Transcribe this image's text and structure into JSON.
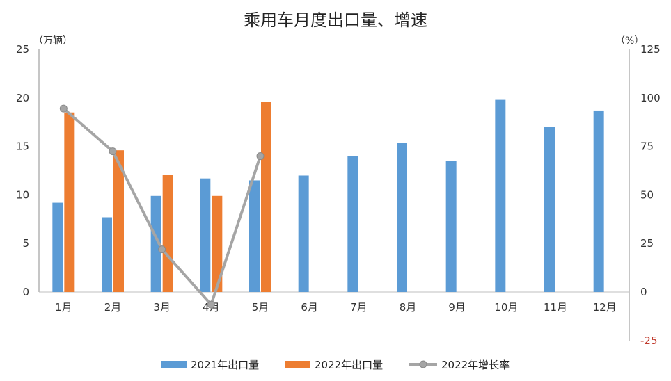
{
  "chart_data": {
    "type": "bar",
    "title": "乘用车月度出口量、增速",
    "categories": [
      "1月",
      "2月",
      "3月",
      "4月",
      "5月",
      "6月",
      "7月",
      "8月",
      "9月",
      "10月",
      "11月",
      "12月"
    ],
    "y_left": {
      "unit": "（万辆）",
      "ylim": [
        0,
        25
      ],
      "ticks": [
        "0",
        "5",
        "10",
        "15",
        "20",
        "25"
      ]
    },
    "y_right": {
      "unit": "（%）",
      "ylim": [
        -25,
        125
      ],
      "ticks": [
        "-25",
        "0",
        "25",
        "50",
        "75",
        "100",
        "125"
      ],
      "negative_color": "#c0392b"
    },
    "series": [
      {
        "name": "2021年出口量",
        "kind": "bar",
        "color": "#5b9bd5",
        "values": [
          9.2,
          7.7,
          9.9,
          11.7,
          11.5,
          12.0,
          14.0,
          15.4,
          13.5,
          19.8,
          17.0,
          18.7
        ]
      },
      {
        "name": "2022年出口量",
        "kind": "bar",
        "color": "#ed7d31",
        "values": [
          18.5,
          14.6,
          12.1,
          9.9,
          19.6,
          null,
          null,
          null,
          null,
          null,
          null,
          null
        ]
      },
      {
        "name": "2022年增长率",
        "kind": "line",
        "axis": "right",
        "color": "#a5a5a5",
        "values": [
          94.5,
          72.5,
          22,
          -6.5,
          70,
          null,
          null,
          null,
          null,
          null,
          null,
          null
        ]
      }
    ],
    "grid": false,
    "legend_position": "bottom"
  }
}
